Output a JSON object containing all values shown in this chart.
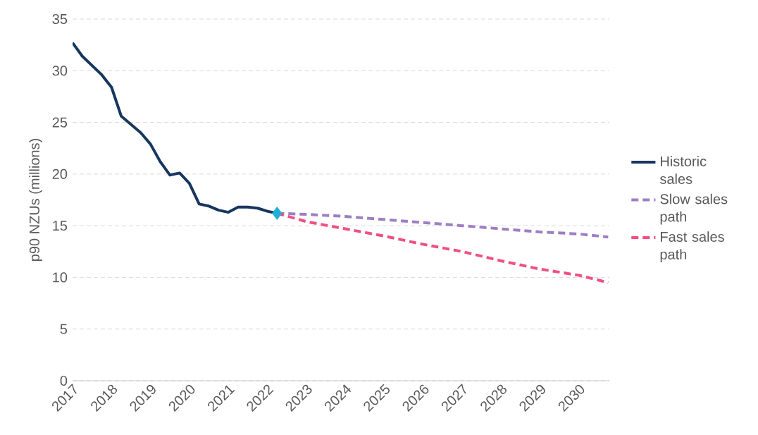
{
  "chart_data": {
    "type": "line",
    "ylabel": "p90 NZUs (millions)",
    "xlim": [
      2017,
      2030.78
    ],
    "ylim": [
      0,
      35
    ],
    "xticks": [
      2017,
      2018,
      2019,
      2020,
      2021,
      2022,
      2023,
      2024,
      2025,
      2026,
      2027,
      2028,
      2029,
      2030
    ],
    "yticks": [
      0,
      5,
      10,
      15,
      20,
      25,
      30,
      35
    ],
    "grid": "y",
    "legend": "right",
    "marker": "none",
    "series": [
      {
        "name": "Historic sales",
        "color": "#17375e",
        "line_style": "solid",
        "x": [
          2017,
          2017.25,
          2017.5,
          2017.75,
          2018,
          2018.25,
          2018.5,
          2018.75,
          2019,
          2019.25,
          2019.5,
          2019.75,
          2020,
          2020.25,
          2020.5,
          2020.75,
          2021,
          2021.25,
          2021.5,
          2021.75,
          2022,
          2022.25
        ],
        "values": [
          32.7,
          31.4,
          30.5,
          29.6,
          28.4,
          25.6,
          24.8,
          24.0,
          22.9,
          21.2,
          19.9,
          20.1,
          19.1,
          17.1,
          16.9,
          16.5,
          16.3,
          16.8,
          16.8,
          16.7,
          16.4,
          16.2
        ]
      },
      {
        "name": "Slow sales path",
        "color": "#9e7ec3",
        "line_style": "dashed",
        "x": [
          2022.25,
          2023,
          2024,
          2025,
          2026,
          2027,
          2028,
          2029,
          2030,
          2030.75
        ],
        "values": [
          16.2,
          16.1,
          15.9,
          15.6,
          15.3,
          15.0,
          14.7,
          14.4,
          14.2,
          13.9
        ]
      },
      {
        "name": "Fast sales path",
        "color": "#f0507f",
        "line_style": "dashed",
        "x": [
          2022.25,
          2023,
          2024,
          2025,
          2026,
          2027,
          2028,
          2029,
          2030,
          2030.75
        ],
        "values": [
          16.2,
          15.4,
          14.7,
          14.0,
          13.2,
          12.5,
          11.6,
          10.8,
          10.2,
          9.5
        ]
      },
      {
        "type": "scatter",
        "marker": "diamond",
        "color": "#1fb0d8",
        "x": [
          2022.25
        ],
        "values": [
          16.2
        ]
      }
    ]
  }
}
